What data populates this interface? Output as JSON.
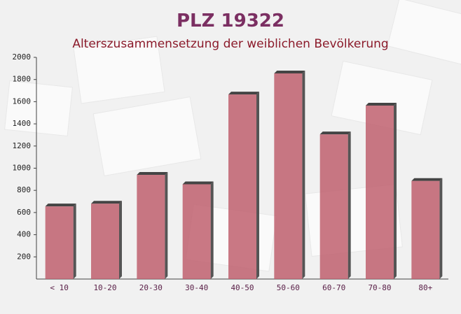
{
  "chart_data": {
    "type": "bar",
    "title": "PLZ 19322",
    "subtitle": "Alterszusammensetzung der weiblichen Bevölkerung",
    "categories": [
      "< 10",
      "10-20",
      "20-30",
      "30-40",
      "40-50",
      "50-60",
      "60-70",
      "70-80",
      "80+"
    ],
    "values": [
      655,
      680,
      940,
      855,
      1665,
      1855,
      1305,
      1565,
      885
    ],
    "color": "#c0606e",
    "ylim": [
      0,
      2000
    ],
    "yticks": [
      200,
      400,
      600,
      800,
      1000,
      1200,
      1400,
      1600,
      1800,
      2000
    ]
  }
}
